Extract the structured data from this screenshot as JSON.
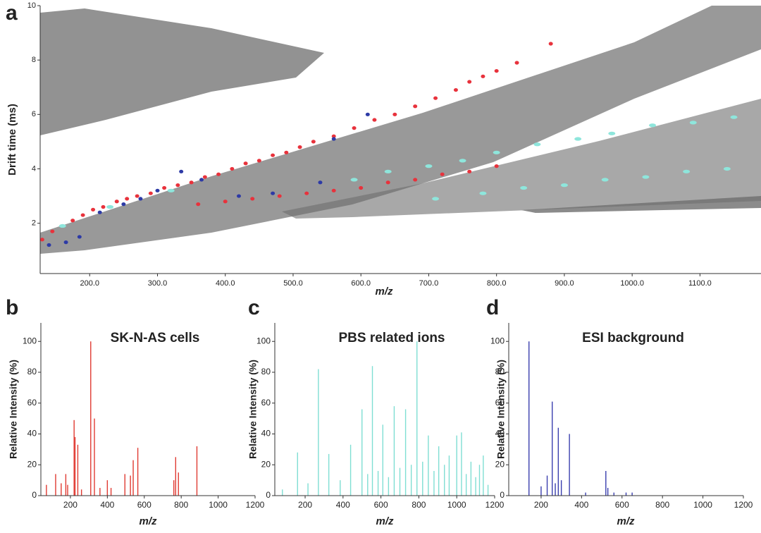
{
  "chart_data": [
    {
      "type": "scatter",
      "panel": "a",
      "x_label": "m/z",
      "y_label": "Drift time (ms)",
      "xlim": [
        127,
        1190
      ],
      "ylim": [
        0.15,
        10
      ],
      "xticks": [
        {
          "value": 200,
          "label": "200.0"
        },
        {
          "value": 300,
          "label": "300.0"
        },
        {
          "value": 400,
          "label": "400.0"
        },
        {
          "value": 500,
          "label": "500.0"
        },
        {
          "value": 600,
          "label": "600.0"
        },
        {
          "value": 700,
          "label": "700.0"
        },
        {
          "value": 800,
          "label": "800.0"
        },
        {
          "value": 900,
          "label": "900.0"
        },
        {
          "value": 1000,
          "label": "1000.0"
        },
        {
          "value": 1100,
          "label": "1100.0"
        }
      ],
      "yticks": [
        2,
        4,
        6,
        8,
        10
      ],
      "series": [
        {
          "name": "SK-N-AS cells",
          "color": "#e8323c",
          "x": [
            130,
            145,
            160,
            175,
            190,
            205,
            220,
            240,
            255,
            270,
            290,
            310,
            330,
            350,
            370,
            390,
            410,
            430,
            450,
            470,
            490,
            510,
            530,
            560,
            590,
            620,
            650,
            680,
            710,
            740,
            760,
            780,
            800,
            830,
            880,
            360,
            400,
            440,
            480,
            520,
            560,
            600,
            640,
            680,
            720,
            760,
            800
          ],
          "y": [
            1.4,
            1.7,
            1.9,
            2.1,
            2.3,
            2.5,
            2.6,
            2.8,
            2.9,
            3.0,
            3.1,
            3.3,
            3.4,
            3.5,
            3.7,
            3.8,
            4.0,
            4.2,
            4.3,
            4.5,
            4.6,
            4.8,
            5.0,
            5.2,
            5.5,
            5.8,
            6.0,
            6.3,
            6.6,
            6.9,
            7.2,
            7.4,
            7.6,
            7.9,
            8.6,
            2.7,
            2.8,
            2.9,
            3.0,
            3.1,
            3.2,
            3.3,
            3.5,
            3.6,
            3.8,
            3.9,
            4.1
          ]
        },
        {
          "name": "PBS related ions",
          "color": "#8ee6dc",
          "x": [
            160,
            230,
            320,
            590,
            640,
            700,
            750,
            800,
            860,
            920,
            970,
            1030,
            1090,
            1150,
            710,
            780,
            840,
            900,
            960,
            1020,
            1080,
            1140
          ],
          "y": [
            1.9,
            2.6,
            3.2,
            3.6,
            3.9,
            4.1,
            4.3,
            4.6,
            4.9,
            5.1,
            5.3,
            5.6,
            5.7,
            5.9,
            2.9,
            3.1,
            3.3,
            3.4,
            3.6,
            3.7,
            3.9,
            4.0
          ]
        },
        {
          "name": "ESI background",
          "color": "#2d3aa6",
          "x": [
            140,
            165,
            185,
            215,
            250,
            275,
            300,
            335,
            365,
            420,
            470,
            540,
            560,
            610
          ],
          "y": [
            1.2,
            1.3,
            1.5,
            2.4,
            2.7,
            2.9,
            3.2,
            3.9,
            3.6,
            3.0,
            3.1,
            3.5,
            5.1,
            6.0
          ]
        }
      ]
    },
    {
      "type": "stem",
      "panel": "b",
      "title": "SK-N-AS cells",
      "x_label": "m/z",
      "y_label": "Relative Intensity (%)",
      "color": "#e03a32",
      "xlim": [
        40,
        1200
      ],
      "ylim": [
        0,
        112
      ],
      "xticks": [
        200,
        400,
        600,
        800,
        1000,
        1200
      ],
      "yticks": [
        0,
        20,
        40,
        60,
        80,
        100
      ],
      "x": [
        70,
        120,
        150,
        175,
        185,
        220,
        225,
        240,
        260,
        310,
        330,
        360,
        400,
        420,
        495,
        525,
        540,
        565,
        760,
        770,
        785,
        885
      ],
      "values": [
        7,
        14,
        8,
        14,
        7,
        49,
        38,
        33,
        4,
        100,
        50,
        5,
        10,
        5,
        14,
        13,
        23,
        31,
        10,
        25,
        15,
        32
      ]
    },
    {
      "type": "stem",
      "panel": "c",
      "title": "PBS related ions",
      "x_label": "m/z",
      "y_label": "Relative Intensity (%)",
      "color": "#7fded3",
      "xlim": [
        40,
        1200
      ],
      "ylim": [
        0,
        112
      ],
      "xticks": [
        200,
        400,
        600,
        800,
        1000,
        1200
      ],
      "yticks": [
        0,
        20,
        40,
        60,
        80,
        100
      ],
      "x": [
        80,
        160,
        215,
        270,
        325,
        385,
        440,
        500,
        530,
        555,
        585,
        610,
        640,
        670,
        700,
        730,
        760,
        790,
        820,
        850,
        880,
        905,
        935,
        960,
        1000,
        1025,
        1050,
        1075,
        1100,
        1120,
        1140,
        1165
      ],
      "values": [
        4,
        28,
        8,
        82,
        27,
        10,
        33,
        56,
        14,
        84,
        16,
        46,
        12,
        58,
        18,
        56,
        20,
        100,
        22,
        39,
        16,
        32,
        20,
        26,
        39,
        41,
        14,
        22,
        12,
        20,
        26,
        7
      ]
    },
    {
      "type": "stem",
      "panel": "d",
      "title": "ESI background",
      "x_label": "m/z",
      "y_label": "Relative Intensity (%)",
      "color": "#3a3fae",
      "xlim": [
        40,
        1200
      ],
      "ylim": [
        0,
        112
      ],
      "xticks": [
        200,
        400,
        600,
        800,
        1000,
        1200
      ],
      "yticks": [
        0,
        20,
        40,
        60,
        80,
        100
      ],
      "x": [
        140,
        200,
        230,
        255,
        270,
        285,
        300,
        340,
        420,
        520,
        530,
        560,
        620,
        650
      ],
      "values": [
        100,
        6,
        13,
        61,
        8,
        44,
        10,
        40,
        2,
        16,
        5,
        2,
        2,
        2
      ]
    }
  ]
}
